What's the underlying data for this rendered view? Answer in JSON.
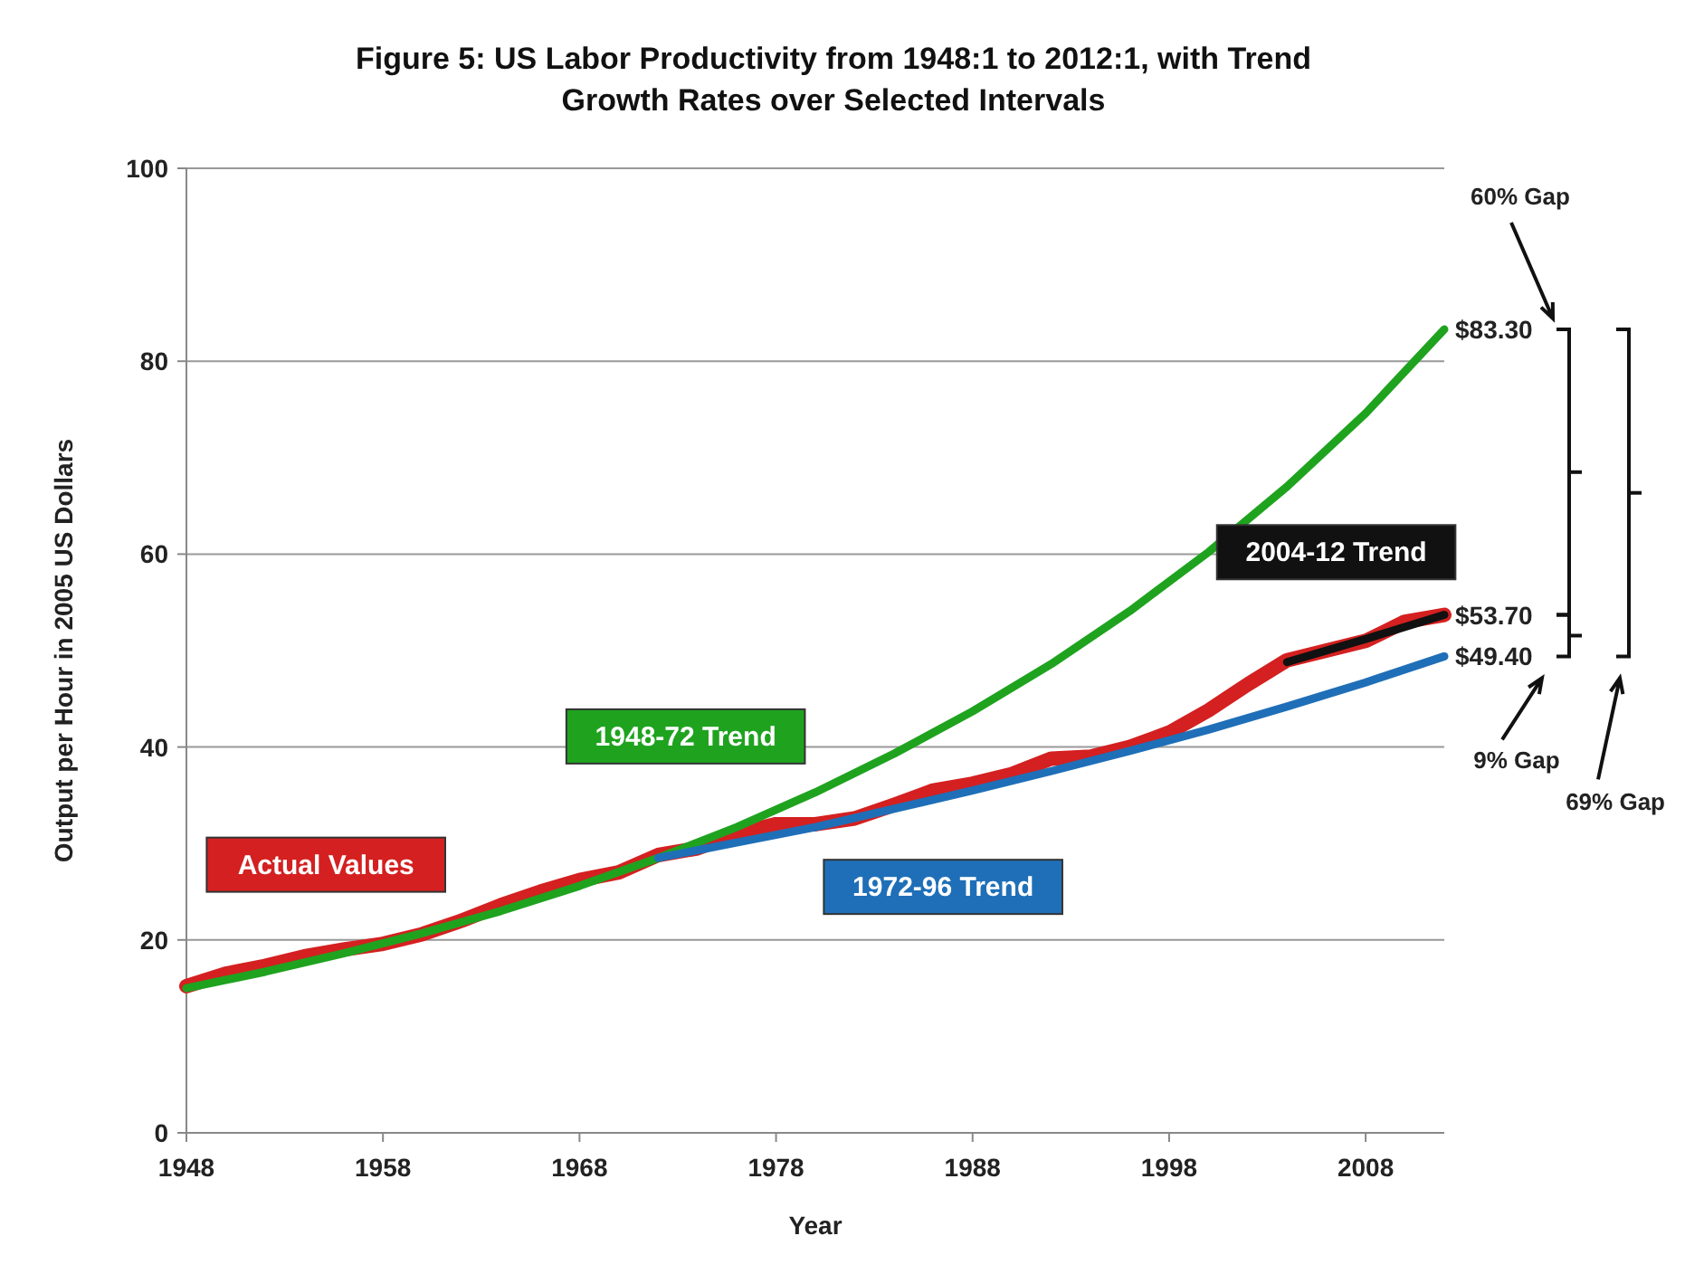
{
  "chart_data": {
    "type": "line",
    "title": "Figure 5: US Labor Productivity from 1948:1 to 2012:1, with Trend Growth Rates over Selected Intervals",
    "xlabel": "Year",
    "ylabel": "Output per Hour in 2005 US Dollars",
    "xlim": [
      1948,
      2012
    ],
    "xticks": [
      1948,
      1958,
      1968,
      1978,
      1988,
      1998,
      2008
    ],
    "ylim": [
      0,
      100
    ],
    "yticks": [
      0,
      20,
      40,
      60,
      80,
      100
    ],
    "grid": "y",
    "marker": "none",
    "line_style": "solid",
    "series": [
      {
        "name": "Actual Values",
        "color": "#d42020",
        "x": [
          1948,
          1950,
          1952,
          1954,
          1956,
          1958,
          1960,
          1962,
          1964,
          1966,
          1968,
          1970,
          1972,
          1974,
          1976,
          1978,
          1980,
          1982,
          1984,
          1986,
          1988,
          1990,
          1992,
          1994,
          1996,
          1998,
          2000,
          2002,
          2004,
          2006,
          2008,
          2010,
          2012
        ],
        "values": [
          15.2,
          16.5,
          17.3,
          18.3,
          19.0,
          19.6,
          20.6,
          22.0,
          23.6,
          25.0,
          26.2,
          27.0,
          28.8,
          29.5,
          31.0,
          32.0,
          32.0,
          32.6,
          34.0,
          35.5,
          36.2,
          37.2,
          38.8,
          39.0,
          40.0,
          41.5,
          43.8,
          46.5,
          49.0,
          50.0,
          51.0,
          53.0,
          53.7
        ]
      },
      {
        "name": "1948-72 Trend",
        "color": "#1fa31f",
        "x": [
          1948,
          1952,
          1956,
          1960,
          1964,
          1968,
          1972,
          1976,
          1980,
          1984,
          1988,
          1992,
          1996,
          2000,
          2004,
          2008,
          2012
        ],
        "values": [
          15.0,
          16.7,
          18.6,
          20.7,
          23.0,
          25.6,
          28.5,
          31.7,
          35.3,
          39.3,
          43.7,
          48.6,
          54.1,
          60.2,
          67.0,
          74.6,
          83.3
        ]
      },
      {
        "name": "1972-96 Trend",
        "color": "#1f6fb8",
        "x": [
          1972,
          1976,
          1980,
          1984,
          1988,
          1992,
          1996,
          2000,
          2004,
          2008,
          2012
        ],
        "values": [
          28.5,
          30.1,
          31.7,
          33.6,
          35.5,
          37.5,
          39.6,
          41.8,
          44.2,
          46.7,
          49.4
        ]
      },
      {
        "name": "2004-12 Trend",
        "color": "#111111",
        "x": [
          2004,
          2008,
          2012
        ],
        "values": [
          48.8,
          51.2,
          53.7
        ]
      }
    ],
    "annotations": [
      "60% Gap",
      "$83.30",
      "$53.70",
      "$49.40",
      "9% Gap",
      "69% Gap"
    ]
  }
}
